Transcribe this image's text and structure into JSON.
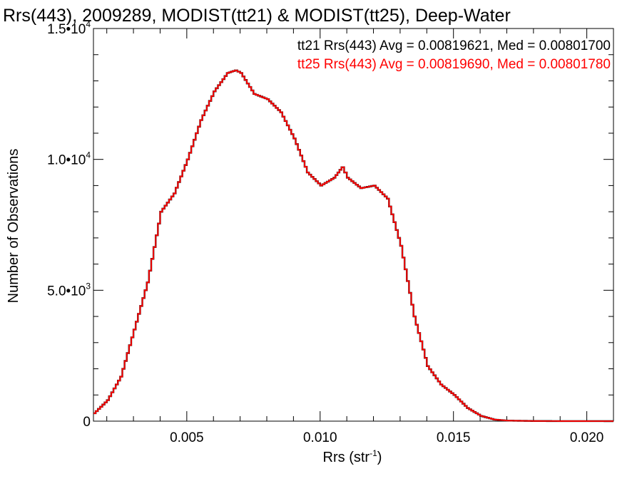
{
  "chart_data": {
    "type": "line",
    "title": "Rrs(443), 2009289, MODIST(tt21) & MODIST(tt25), Deep-Water",
    "xlabel": "Rrs (str",
    "xlabel_sup": "-1",
    "xlabel_suffix": ")",
    "ylabel": "Number of Observations",
    "xlim": [
      0.0015,
      0.021
    ],
    "ylim": [
      0,
      15000
    ],
    "grid": false,
    "x_ticks": [
      {
        "value": 0.005,
        "label": "0.005"
      },
      {
        "value": 0.01,
        "label": "0.010"
      },
      {
        "value": 0.015,
        "label": "0.015"
      },
      {
        "value": 0.02,
        "label": "0.020"
      }
    ],
    "y_ticks": [
      {
        "value": 0,
        "label": "0",
        "sup": ""
      },
      {
        "value": 5000,
        "label": "5.0•10",
        "sup": "3"
      },
      {
        "value": 10000,
        "label": "1.0•10",
        "sup": "4"
      },
      {
        "value": 15000,
        "label": "1.5•10",
        "sup": "4"
      }
    ],
    "annotations": [
      {
        "text": "tt21 Rrs(443) Avg = 0.00819621, Med = 0.00801700",
        "color": "#000000"
      },
      {
        "text": "tt25 Rrs(443) Avg = 0.00819690, Med = 0.00801780",
        "color": "#ff0000"
      }
    ],
    "x": [
      0.0015,
      0.002,
      0.0025,
      0.003,
      0.0035,
      0.004,
      0.0045,
      0.005,
      0.0055,
      0.006,
      0.0065,
      0.0068,
      0.007,
      0.0075,
      0.008,
      0.0085,
      0.009,
      0.0095,
      0.01,
      0.0105,
      0.0108,
      0.011,
      0.0115,
      0.012,
      0.0125,
      0.013,
      0.0135,
      0.014,
      0.0145,
      0.015,
      0.0155,
      0.016,
      0.0165,
      0.017,
      0.018,
      0.019,
      0.02,
      0.021
    ],
    "series": [
      {
        "name": "tt21",
        "color": "#000000",
        "values": [
          300,
          800,
          1700,
          3500,
          5300,
          8000,
          8700,
          10000,
          11500,
          12600,
          13300,
          13400,
          13300,
          12500,
          12300,
          11800,
          10800,
          9500,
          9000,
          9300,
          9700,
          9300,
          8900,
          9000,
          8500,
          6700,
          4000,
          2100,
          1400,
          1000,
          500,
          200,
          60,
          20,
          5,
          2,
          1,
          0
        ]
      },
      {
        "name": "tt25",
        "color": "#ff0000",
        "values": [
          300,
          800,
          1700,
          3500,
          5300,
          8000,
          8700,
          10000,
          11500,
          12600,
          13300,
          13400,
          13300,
          12500,
          12300,
          11800,
          10800,
          9500,
          9000,
          9300,
          9700,
          9300,
          8900,
          9000,
          8500,
          6700,
          4000,
          2100,
          1400,
          1000,
          500,
          200,
          60,
          20,
          5,
          2,
          1,
          0
        ]
      }
    ]
  }
}
